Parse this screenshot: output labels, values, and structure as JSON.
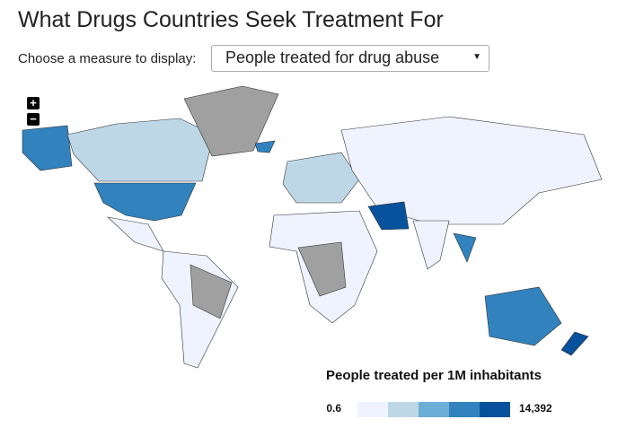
{
  "header": {
    "title": "What Drugs Countries Seek Treatment For"
  },
  "control": {
    "label": "Choose a measure to display:",
    "selected": "People treated for drug abuse"
  },
  "zoom": {
    "in": "+",
    "out": "−"
  },
  "legend": {
    "title": "People treated per 1M inhabitants",
    "min": 0.6,
    "max": {
      "value": 14392,
      "label": "14,392"
    },
    "colors": [
      "#eff3ff",
      "#bdd7e7",
      "#6baed6",
      "#3182bd",
      "#08519c"
    ]
  }
}
